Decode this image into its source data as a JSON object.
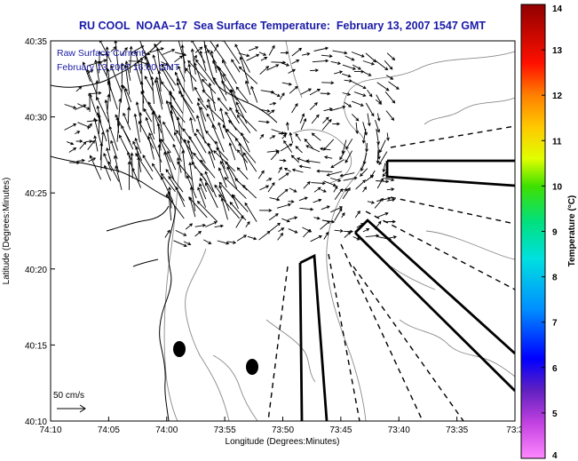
{
  "chart_data": {
    "type": "vector-field map",
    "title": "RU COOL  NOAA–17  Sea Surface Temperature:  February 13, 2007 1547 GMT",
    "legend": [
      "Raw Surface Current:",
      "February 13 2007 16:00 GMT"
    ],
    "scale_label": "50 cm/s",
    "xlabel": "Longitude (Degrees:Minutes)",
    "ylabel": "Latitude (Degrees:Minutes)",
    "x_ticks": [
      "74:10",
      "74:05",
      "74:00",
      "73:55",
      "73:50",
      "73:45",
      "73:40",
      "73:35",
      "73:3"
    ],
    "y_ticks": [
      "40:35",
      "40:30",
      "40:25",
      "40:20",
      "40:15",
      "40:10"
    ],
    "colorbar": {
      "label": "Temperature (°C)",
      "ticks": [
        "14",
        "13",
        "12",
        "11",
        "10",
        "9",
        "8",
        "7",
        "6",
        "5",
        "4"
      ],
      "range": [
        4,
        14
      ]
    }
  }
}
